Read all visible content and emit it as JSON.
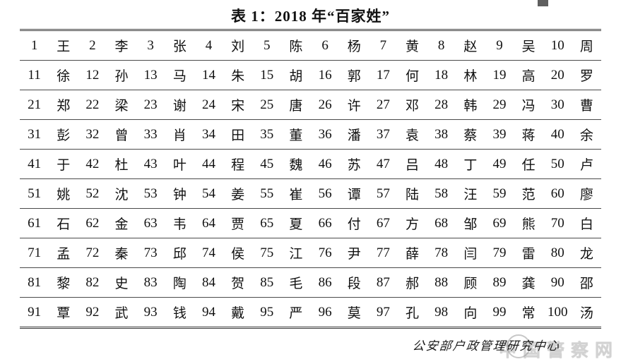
{
  "title": "表 1：2018 年“百家姓”",
  "table": {
    "rows": [
      {
        "cells": [
          "1",
          "王",
          "2",
          "李",
          "3",
          "张",
          "4",
          "刘",
          "5",
          "陈",
          "6",
          "杨",
          "7",
          "黄",
          "8",
          "赵",
          "9",
          "吴",
          "10",
          "周"
        ]
      },
      {
        "cells": [
          "11",
          "徐",
          "12",
          "孙",
          "13",
          "马",
          "14",
          "朱",
          "15",
          "胡",
          "16",
          "郭",
          "17",
          "何",
          "18",
          "林",
          "19",
          "高",
          "20",
          "罗"
        ]
      },
      {
        "cells": [
          "21",
          "郑",
          "22",
          "梁",
          "23",
          "谢",
          "24",
          "宋",
          "25",
          "唐",
          "26",
          "许",
          "27",
          "邓",
          "28",
          "韩",
          "29",
          "冯",
          "30",
          "曹"
        ]
      },
      {
        "cells": [
          "31",
          "彭",
          "32",
          "曾",
          "33",
          "肖",
          "34",
          "田",
          "35",
          "董",
          "36",
          "潘",
          "37",
          "袁",
          "38",
          "蔡",
          "39",
          "蒋",
          "40",
          "余"
        ]
      },
      {
        "cells": [
          "41",
          "于",
          "42",
          "杜",
          "43",
          "叶",
          "44",
          "程",
          "45",
          "魏",
          "46",
          "苏",
          "47",
          "吕",
          "48",
          "丁",
          "49",
          "任",
          "50",
          "卢"
        ]
      },
      {
        "cells": [
          "51",
          "姚",
          "52",
          "沈",
          "53",
          "钟",
          "54",
          "姜",
          "55",
          "崔",
          "56",
          "谭",
          "57",
          "陆",
          "58",
          "汪",
          "59",
          "范",
          "60",
          "廖"
        ]
      },
      {
        "cells": [
          "61",
          "石",
          "62",
          "金",
          "63",
          "韦",
          "64",
          "贾",
          "65",
          "夏",
          "66",
          "付",
          "67",
          "方",
          "68",
          "邹",
          "69",
          "熊",
          "70",
          "白"
        ]
      },
      {
        "cells": [
          "71",
          "孟",
          "72",
          "秦",
          "73",
          "邱",
          "74",
          "侯",
          "75",
          "江",
          "76",
          "尹",
          "77",
          "薛",
          "78",
          "闫",
          "79",
          "雷",
          "80",
          "龙"
        ]
      },
      {
        "cells": [
          "81",
          "黎",
          "82",
          "史",
          "83",
          "陶",
          "84",
          "贺",
          "85",
          "毛",
          "86",
          "段",
          "87",
          "郝",
          "88",
          "顾",
          "89",
          "龚",
          "90",
          "邵"
        ]
      },
      {
        "cells": [
          "91",
          "覃",
          "92",
          "武",
          "93",
          "钱",
          "94",
          "戴",
          "95",
          "严",
          "96",
          "莫",
          "97",
          "孔",
          "98",
          "向",
          "99",
          "常",
          "100",
          "汤"
        ]
      }
    ]
  },
  "footer": {
    "source": "公安部户政管理研究中心"
  },
  "watermark": {
    "text": "中国警察网"
  },
  "colors": {
    "line": "#3c3c3c",
    "text": "#111111",
    "watermark": "#d2d2d2"
  }
}
